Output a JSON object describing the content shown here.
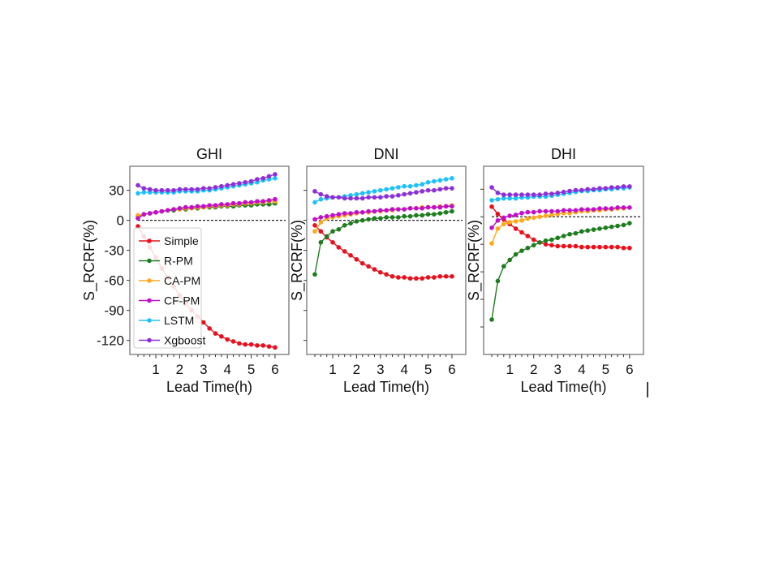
{
  "chart_data": {
    "type": "line",
    "x": [
      0.25,
      0.5,
      0.75,
      1,
      1.25,
      1.5,
      1.75,
      2,
      2.25,
      2.5,
      2.75,
      3,
      3.25,
      3.5,
      3.75,
      4,
      4.25,
      4.5,
      4.75,
      5,
      5.25,
      5.5,
      5.75,
      6
    ],
    "xlabel": "Lead Time(h)",
    "ylabel": "S_RCRF(%)",
    "xticks": [
      1,
      2,
      3,
      4,
      5,
      6
    ],
    "yticks": [
      30,
      0,
      -30,
      -60,
      -90,
      -120
    ],
    "zero_reference_line": 0,
    "legend": {
      "placement": "lower-left of first panel",
      "entries": [
        "Simple",
        "R-PM",
        "CA-PM",
        "CF-PM",
        "LSTM",
        "Xgboost"
      ]
    },
    "colors": {
      "Simple": "#e8101c",
      "R-PM": "#1e7d1e",
      "CA-PM": "#ffa81c",
      "CF-PM": "#c010c8",
      "LSTM": "#20c0f8",
      "Xgboost": "#8c30d8"
    },
    "panels": [
      {
        "title": "GHI",
        "xlim": [
          -0.09,
          6.58
        ],
        "ylim": [
          -134,
          54
        ],
        "show_ytick_labels": true,
        "series": [
          {
            "name": "Simple",
            "values": [
              -6,
              -16,
              -27,
              -37,
              -48,
              -57,
              -66,
              -75,
              -83,
              -90,
              -96,
              -102,
              -108,
              -113,
              -116,
              -119,
              -121,
              -123,
              -124,
              -124,
              -125,
              -125,
              -126,
              -127
            ]
          },
          {
            "name": "R-PM",
            "values": [
              4,
              6,
              7,
              8,
              9,
              10,
              10,
              11,
              11,
              12,
              12,
              13,
              13,
              13,
              14,
              14,
              14,
              15,
              15,
              15,
              16,
              16,
              16,
              17
            ]
          },
          {
            "name": "CA-PM",
            "values": [
              5,
              6,
              7,
              8,
              9,
              10,
              11,
              11,
              12,
              12,
              13,
              13,
              14,
              14,
              15,
              15,
              16,
              16,
              17,
              17,
              18,
              18,
              19,
              19
            ]
          },
          {
            "name": "CF-PM",
            "values": [
              2,
              6,
              7,
              8,
              9,
              10,
              11,
              12,
              13,
              13,
              14,
              14,
              15,
              15,
              16,
              16,
              17,
              17,
              18,
              18,
              19,
              19,
              20,
              21
            ]
          },
          {
            "name": "LSTM",
            "values": [
              27,
              28,
              28,
              28,
              28,
              28,
              28,
              29,
              29,
              29,
              29,
              30,
              30,
              31,
              32,
              33,
              34,
              35,
              36,
              37,
              38,
              40,
              41,
              42
            ]
          },
          {
            "name": "Xgboost",
            "values": [
              35,
              32,
              31,
              30,
              30,
              30,
              30,
              31,
              31,
              31,
              31,
              32,
              32,
              33,
              34,
              35,
              36,
              37,
              38,
              39,
              41,
              42,
              44,
              46
            ]
          }
        ]
      },
      {
        "title": "DNI",
        "xlim": [
          -0.09,
          6.58
        ],
        "ylim": [
          -134,
          54
        ],
        "show_ytick_labels": false,
        "series": [
          {
            "name": "Simple",
            "values": [
              -5,
              -11,
              -17,
              -22,
              -27,
              -31,
              -35,
              -39,
              -43,
              -46,
              -49,
              -52,
              -54,
              -56,
              -57,
              -57,
              -58,
              -58,
              -58,
              -57,
              -57,
              -56,
              -56,
              -56
            ]
          },
          {
            "name": "R-PM",
            "values": [
              -54,
              -22,
              -16,
              -11,
              -9,
              -5,
              -3,
              -1,
              0,
              1,
              2,
              2,
              3,
              3,
              3,
              4,
              4,
              5,
              5,
              6,
              6,
              7,
              8,
              9
            ]
          },
          {
            "name": "CA-PM",
            "values": [
              -11,
              -2,
              2,
              3,
              4,
              5,
              6,
              7,
              8,
              8,
              9,
              9,
              10,
              10,
              11,
              11,
              12,
              12,
              13,
              13,
              13,
              14,
              14,
              15
            ]
          },
          {
            "name": "CF-PM",
            "values": [
              1,
              3,
              4,
              5,
              6,
              7,
              7,
              8,
              8,
              9,
              9,
              10,
              10,
              11,
              11,
              11,
              12,
              12,
              12,
              13,
              13,
              13,
              14,
              14
            ]
          },
          {
            "name": "LSTM",
            "values": [
              18,
              21,
              22,
              23,
              23,
              24,
              25,
              26,
              27,
              28,
              29,
              30,
              31,
              32,
              33,
              34,
              34,
              35,
              36,
              38,
              39,
              40,
              41,
              42
            ]
          },
          {
            "name": "Xgboost",
            "values": [
              29,
              26,
              24,
              23,
              23,
              22,
              22,
              22,
              22,
              23,
              23,
              23,
              24,
              24,
              25,
              26,
              27,
              28,
              29,
              30,
              30,
              31,
              32,
              32
            ]
          }
        ]
      },
      {
        "title": "DHI",
        "xlim": [
          -0.09,
          6.58
        ],
        "ylim": [
          -150,
          55
        ],
        "show_ytick_labels": false,
        "series": [
          {
            "name": "Simple",
            "values": [
              11,
              3,
              -3,
              -8,
              -13,
              -17,
              -21,
              -25,
              -28,
              -30,
              -31,
              -32,
              -32,
              -32,
              -32,
              -33,
              -33,
              -33,
              -33,
              -33,
              -33,
              -33,
              -34,
              -34
            ]
          },
          {
            "name": "R-PM",
            "values": [
              -112,
              -70,
              -54,
              -47,
              -41,
              -37,
              -34,
              -31,
              -28,
              -26,
              -25,
              -23,
              -21,
              -19,
              -18,
              -16,
              -15,
              -14,
              -13,
              -12,
              -11,
              -10,
              -9,
              -7
            ]
          },
          {
            "name": "CA-PM",
            "values": [
              -29,
              -13,
              -8,
              -6,
              -5,
              -4,
              -2,
              -1,
              0,
              1,
              2,
              3,
              4,
              4,
              5,
              6,
              6,
              7,
              7,
              8,
              8,
              9,
              9,
              10
            ]
          },
          {
            "name": "CF-PM",
            "values": [
              -12,
              -4,
              -1,
              1,
              2,
              4,
              5,
              5,
              6,
              6,
              6,
              6,
              7,
              7,
              7,
              8,
              8,
              8,
              9,
              9,
              9,
              10,
              10,
              10
            ]
          },
          {
            "name": "LSTM",
            "values": [
              18,
              19,
              20,
              20,
              20,
              21,
              21,
              22,
              22,
              22,
              23,
              24,
              25,
              26,
              27,
              28,
              28,
              29,
              29,
              30,
              30,
              31,
              31,
              32
            ]
          },
          {
            "name": "Xgboost",
            "values": [
              32,
              26,
              24,
              24,
              24,
              24,
              24,
              24,
              24,
              25,
              25,
              26,
              27,
              28,
              29,
              29,
              30,
              30,
              31,
              31,
              32,
              32,
              33,
              33
            ]
          }
        ]
      }
    ]
  }
}
